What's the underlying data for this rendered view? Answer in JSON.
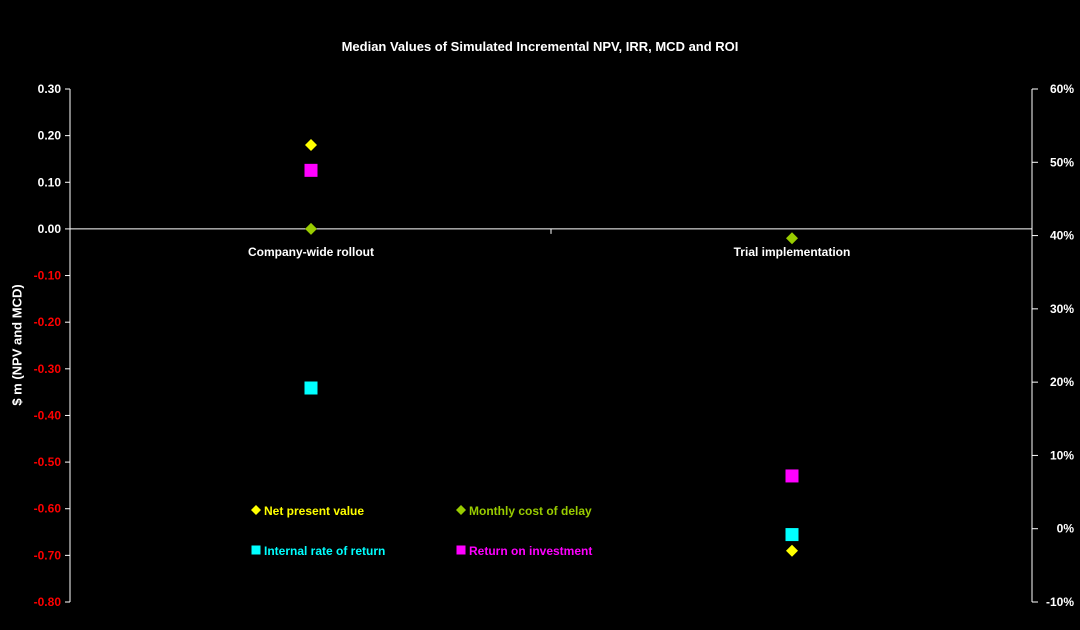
{
  "chart_data": {
    "type": "scatter",
    "title": "Median Values of Simulated Incremental NPV, IRR, MCD and ROI",
    "categories": [
      "Company-wide rollout",
      "Trial implementation"
    ],
    "ylabel": "$ m (NPV and MCD)",
    "ylim": [
      -0.8,
      0.3
    ],
    "y_ticks": [
      "0.30",
      "0.20",
      "0.10",
      "0.00",
      "-0.10",
      "-0.20",
      "-0.30",
      "-0.40",
      "-0.50",
      "-0.60",
      "-0.70",
      "-0.80"
    ],
    "y2label": "",
    "y2lim": [
      -10,
      60
    ],
    "y2_ticks": [
      "60%",
      "50%",
      "40%",
      "30%",
      "20%",
      "10%",
      "0%",
      "-10%"
    ],
    "series": [
      {
        "name": "Net present value",
        "axis": "left",
        "marker": "diamond",
        "color": "#ffff00",
        "values": [
          0.18,
          -0.69
        ]
      },
      {
        "name": "Monthly cost of delay",
        "axis": "left",
        "marker": "diamond",
        "color": "#99cc00",
        "values": [
          0.0,
          -0.02
        ]
      },
      {
        "name": "Internal rate of return",
        "axis": "right",
        "unit": "%",
        "marker": "square",
        "color": "#00ffff",
        "values": [
          19.2,
          -0.8
        ]
      },
      {
        "name": "Return on investment",
        "axis": "right",
        "unit": "%",
        "marker": "square",
        "color": "#ff00ff",
        "values": [
          48.9,
          7.2
        ]
      }
    ],
    "legend": "bottom-left, inside plot"
  },
  "colors": {
    "background": "#000000",
    "axis": "#ffffff",
    "negative_tick": "#ff0000",
    "positive_tick": "#ffffff"
  }
}
